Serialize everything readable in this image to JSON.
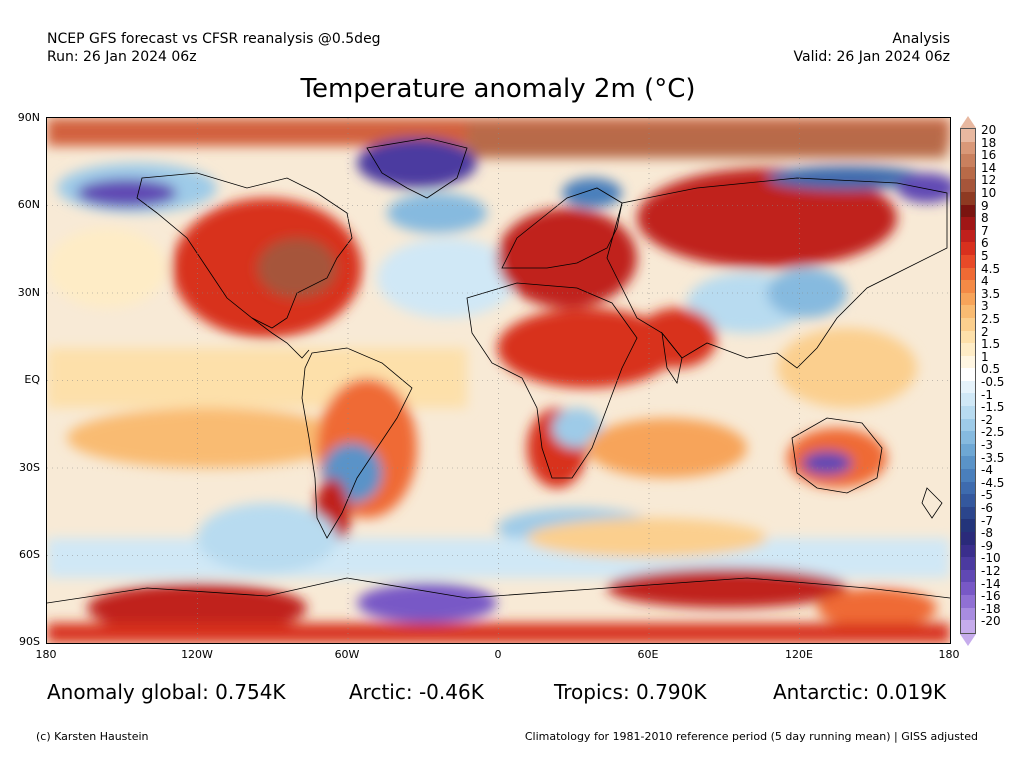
{
  "header": {
    "line1_left": "NCEP GFS forecast vs CFSR reanalysis @0.5deg",
    "line2_left": "Run: 26 Jan 2024 06z",
    "line1_right": "Analysis",
    "line2_right": "Valid: 26 Jan 2024 06z"
  },
  "title": "Temperature anomaly 2m (°C)",
  "map": {
    "lat_labels": [
      "90N",
      "60N",
      "30N",
      "EQ",
      "30S",
      "60S",
      "90S"
    ],
    "lon_labels": [
      "180",
      "120W",
      "60W",
      "0",
      "60E",
      "120E",
      "180"
    ],
    "ocean_color": "#f7f1e8"
  },
  "colorbar": {
    "labels": [
      "20",
      "18",
      "16",
      "14",
      "12",
      "10",
      "9",
      "8",
      "7",
      "6",
      "5",
      "4.5",
      "4",
      "3.5",
      "3",
      "2.5",
      "2",
      "1.5",
      "1",
      "0.5",
      "-0.5",
      "-1",
      "-1.5",
      "-2",
      "-2.5",
      "-3",
      "-3.5",
      "-4",
      "-4.5",
      "-5",
      "-6",
      "-7",
      "-8",
      "-9",
      "-10",
      "-12",
      "-14",
      "-16",
      "-18",
      "-20"
    ],
    "colors": [
      "#e8b8a0",
      "#d99878",
      "#c9805e",
      "#b86a48",
      "#a6553a",
      "#8e3a22",
      "#7a1410",
      "#a01616",
      "#c0201c",
      "#d8301e",
      "#e84a28",
      "#ef6a34",
      "#f48a46",
      "#f7a45a",
      "#f9bb72",
      "#fbcf8e",
      "#fde0aa",
      "#feecc6",
      "#fff6e2",
      "#ffffff",
      "#e6f3fb",
      "#d0e8f6",
      "#b8dbf0",
      "#9ecbe8",
      "#86badf",
      "#6ea7d4",
      "#5a93c8",
      "#4a7fbc",
      "#3e6bae",
      "#34589e",
      "#2b458c",
      "#23347a",
      "#2a2a7a",
      "#3a2e8c",
      "#4b3aa0",
      "#6048b4",
      "#7858c6",
      "#9070d4",
      "#a88ce0",
      "#c6acec"
    ]
  },
  "stats": {
    "global": "Anomaly global: 0.754K",
    "arctic": "Arctic: -0.46K",
    "tropics": "Tropics: 0.790K",
    "antarctic": "Antarctic: 0.019K"
  },
  "footer": {
    "left": "(c) Karsten Haustein",
    "right": "Climatology for 1981-2010 reference period (5 day running mean) | GISS adjusted"
  }
}
